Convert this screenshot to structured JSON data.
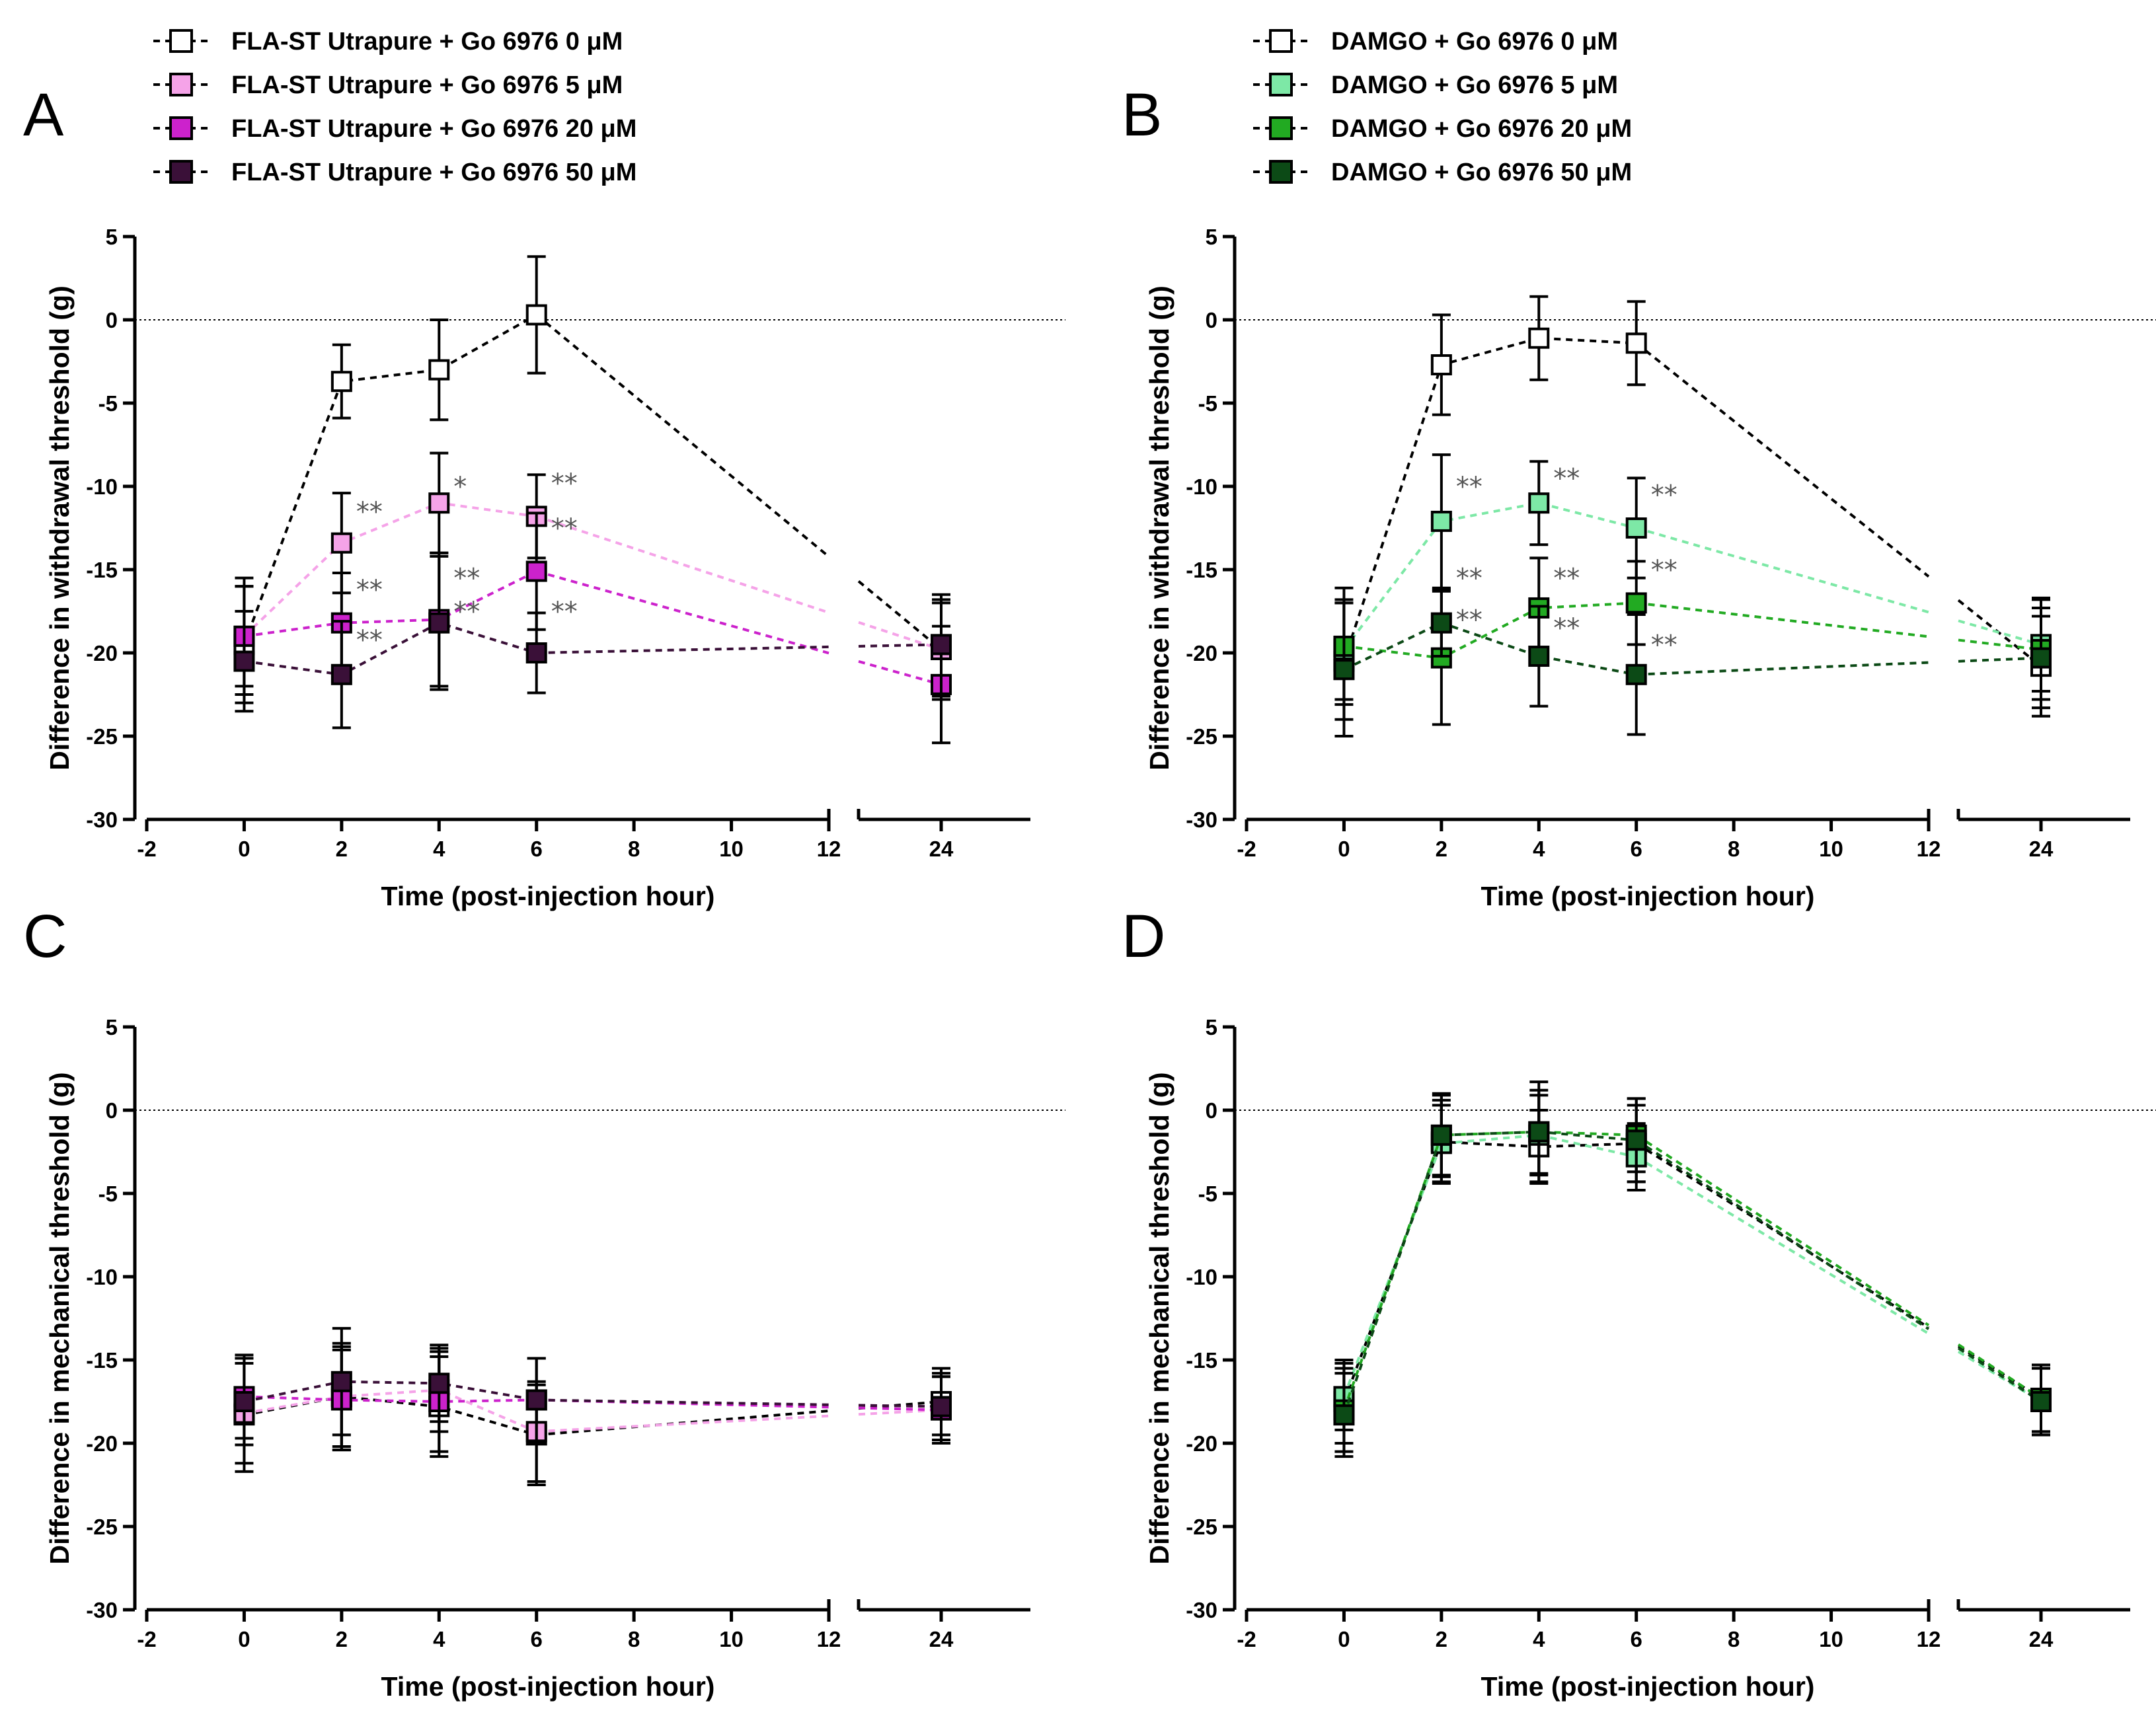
{
  "legends": {
    "left": [
      {
        "text": "FLA-ST Utrapure + Go 6976 0 μM",
        "color": "#ffffff"
      },
      {
        "text": "FLA-ST Utrapure + Go 6976 5 μM",
        "color": "#f5a3e8"
      },
      {
        "text": "FLA-ST Utrapure + Go 6976 20 μM",
        "color": "#cc22cc"
      },
      {
        "text": "FLA-ST Utrapure + Go 6976 50 μM",
        "color": "#3a1038"
      }
    ],
    "right": [
      {
        "text": "DAMGO + Go 6976 0 μM",
        "color": "#ffffff"
      },
      {
        "text": "DAMGO + Go 6976 5 μM",
        "color": "#7de8a6"
      },
      {
        "text": "DAMGO + Go 6976 20 μM",
        "color": "#22aa22"
      },
      {
        "text": "DAMGO + Go 6976 50 μM",
        "color": "#0c4a16"
      }
    ]
  },
  "chart_data": [
    {
      "type": "line",
      "panel": "A",
      "xlabel": "Time (post-injection hour)",
      "ylabel": "Difference in withdrawal threshold (g)",
      "ylim": [
        -30,
        5
      ],
      "yticks": [
        "5",
        "0",
        "-5",
        "-10",
        "-15",
        "-20",
        "-25",
        "-30"
      ],
      "xticks": [
        "-2",
        "0",
        "2",
        "4",
        "6",
        "8",
        "10",
        "12",
        "24"
      ],
      "x": [
        0,
        2,
        4,
        6,
        24
      ],
      "series": [
        {
          "name": "FLA-ST Utrapure + Go 6976 0 μM",
          "color": "#ffffff",
          "values": [
            -19.5,
            -3.7,
            -3.0,
            0.3,
            -19.8
          ],
          "err": [
            3.5,
            2.2,
            3.0,
            3.5,
            3.0
          ]
        },
        {
          "name": "FLA-ST Utrapure + Go 6976 5 μM",
          "color": "#f5a3e8",
          "values": [
            -19.0,
            -13.4,
            -11.0,
            -11.8,
            -19.8
          ],
          "err": [
            3.0,
            3.0,
            3.0,
            2.5,
            2.8
          ]
        },
        {
          "name": "FLA-ST Utrapure + Go 6976 20 μM",
          "color": "#cc22cc",
          "values": [
            -19.0,
            -18.2,
            -18.0,
            -15.1,
            -21.9
          ],
          "err": [
            3.5,
            3.0,
            4.0,
            3.5,
            3.5
          ]
        },
        {
          "name": "FLA-ST Utrapure + Go 6976 50 μM",
          "color": "#3a1038",
          "values": [
            -20.5,
            -21.3,
            -18.2,
            -20.0,
            -19.5
          ],
          "err": [
            3.0,
            3.2,
            4.0,
            2.4,
            3.0
          ]
        }
      ],
      "annotations": [
        {
          "text": "**",
          "x": 2,
          "y": -11.5
        },
        {
          "text": "*",
          "x": 4,
          "y": -10.0
        },
        {
          "text": "**",
          "x": 6,
          "y": -9.8
        },
        {
          "text": "**",
          "x": 6,
          "y": -12.5
        },
        {
          "text": "**",
          "x": 2,
          "y": -16.2
        },
        {
          "text": "**",
          "x": 2,
          "y": -19.2
        },
        {
          "text": "**",
          "x": 4,
          "y": -15.5
        },
        {
          "text": "**",
          "x": 4,
          "y": -17.5
        },
        {
          "text": "**",
          "x": 6,
          "y": -17.5
        }
      ]
    },
    {
      "type": "line",
      "panel": "B",
      "xlabel": "Time (post-injection hour)",
      "ylabel": "Difference in withdrawal threshold (g)",
      "ylim": [
        -30,
        5
      ],
      "yticks": [
        "5",
        "0",
        "-5",
        "-10",
        "-15",
        "-20",
        "-25",
        "-30"
      ],
      "xticks": [
        "-2",
        "0",
        "2",
        "4",
        "6",
        "8",
        "10",
        "12",
        "24"
      ],
      "x": [
        0,
        2,
        4,
        6,
        24
      ],
      "series": [
        {
          "name": "DAMGO + Go 6976 0 μM",
          "color": "#ffffff",
          "values": [
            -20.5,
            -2.7,
            -1.1,
            -1.4,
            -20.8
          ],
          "err": [
            3.5,
            3.0,
            2.5,
            2.5,
            3.0
          ]
        },
        {
          "name": "DAMGO + Go 6976 5 μM",
          "color": "#7de8a6",
          "values": [
            -19.8,
            -12.1,
            -11.0,
            -12.5,
            -19.5
          ],
          "err": [
            3.0,
            4.0,
            2.5,
            3.0,
            2.8
          ]
        },
        {
          "name": "DAMGO + Go 6976 20 μM",
          "color": "#22aa22",
          "values": [
            -19.6,
            -20.3,
            -17.3,
            -17.0,
            -19.8
          ],
          "err": [
            3.5,
            4.0,
            3.0,
            2.5,
            3.0
          ]
        },
        {
          "name": "DAMGO + Go 6976 50 μM",
          "color": "#0c4a16",
          "values": [
            -21.0,
            -18.2,
            -20.2,
            -21.3,
            -20.3
          ],
          "err": [
            4.0,
            2.0,
            3.0,
            3.6,
            3.0
          ]
        }
      ],
      "annotations": [
        {
          "text": "**",
          "x": 2,
          "y": -10.0
        },
        {
          "text": "**",
          "x": 4,
          "y": -9.5
        },
        {
          "text": "**",
          "x": 6,
          "y": -10.5
        },
        {
          "text": "**",
          "x": 6,
          "y": -15.0
        },
        {
          "text": "**",
          "x": 2,
          "y": -15.5
        },
        {
          "text": "**",
          "x": 2,
          "y": -18.0
        },
        {
          "text": "**",
          "x": 4,
          "y": -15.5
        },
        {
          "text": "**",
          "x": 4,
          "y": -18.5
        },
        {
          "text": "**",
          "x": 6,
          "y": -19.5
        }
      ]
    },
    {
      "type": "line",
      "panel": "C",
      "xlabel": "Time (post-injection hour)",
      "ylabel": "Difference in mechanical threshold (g)",
      "ylim": [
        -30,
        5
      ],
      "yticks": [
        "5",
        "0",
        "-5",
        "-10",
        "-15",
        "-20",
        "-25",
        "-30"
      ],
      "xticks": [
        "-2",
        "0",
        "2",
        "4",
        "6",
        "8",
        "10",
        "12",
        "24"
      ],
      "x": [
        0,
        2,
        4,
        6,
        24
      ],
      "series": [
        {
          "name": "FLA-ST Utrapure + Go 6976 0 μM",
          "color": "#ffffff",
          "values": [
            -18.3,
            -17.2,
            -17.8,
            -19.5,
            -17.5
          ],
          "err": [
            3.4,
            3.2,
            3.0,
            3.0,
            2.0
          ]
        },
        {
          "name": "FLA-ST Utrapure + Go 6976 5 μM",
          "color": "#f5a3e8",
          "values": [
            -18.2,
            -17.2,
            -16.8,
            -19.3,
            -18.0
          ],
          "err": [
            3.0,
            3.0,
            2.5,
            3.0,
            2.0
          ]
        },
        {
          "name": "FLA-ST Utrapure + Go 6976 20 μM",
          "color": "#cc22cc",
          "values": [
            -17.2,
            -17.4,
            -17.5,
            -17.4,
            -18.0
          ],
          "err": [
            2.5,
            3.0,
            3.0,
            2.5,
            2.0
          ]
        },
        {
          "name": "FLA-ST Utrapure + Go 6976 50 μM",
          "color": "#3a1038",
          "values": [
            -17.5,
            -16.3,
            -16.4,
            -17.4,
            -17.8
          ],
          "err": [
            2.6,
            3.2,
            2.3,
            2.5,
            2.0
          ]
        }
      ]
    },
    {
      "type": "line",
      "panel": "D",
      "xlabel": "Time (post-injection hour)",
      "ylabel": "Difference in mechanical threshold (g)",
      "ylim": [
        -30,
        5
      ],
      "yticks": [
        "5",
        "0",
        "-5",
        "-10",
        "-15",
        "-20",
        "-25",
        "-30"
      ],
      "xticks": [
        "-2",
        "0",
        "2",
        "4",
        "6",
        "8",
        "10",
        "12",
        "24"
      ],
      "x": [
        0,
        2,
        4,
        6,
        24
      ],
      "series": [
        {
          "name": "DAMGO + Go 6976 0 μM",
          "color": "#ffffff",
          "values": [
            -17.5,
            -1.9,
            -2.2,
            -2.0,
            -17.3
          ],
          "err": [
            2.5,
            2.5,
            2.2,
            2.3,
            2.0
          ]
        },
        {
          "name": "DAMGO + Go 6976 5 μM",
          "color": "#7de8a6",
          "values": [
            -17.2,
            -2.0,
            -1.5,
            -2.8,
            -17.5
          ],
          "err": [
            2.0,
            2.3,
            2.4,
            2.0,
            2.0
          ]
        },
        {
          "name": "DAMGO + Go 6976 20 μM",
          "color": "#22aa22",
          "values": [
            -18.0,
            -1.5,
            -1.3,
            -1.5,
            -17.3
          ],
          "err": [
            2.5,
            2.4,
            2.5,
            2.2,
            2.0
          ]
        },
        {
          "name": "DAMGO + Go 6976 50 μM",
          "color": "#0c4a16",
          "values": [
            -18.3,
            -1.5,
            -1.3,
            -1.8,
            -17.5
          ],
          "err": [
            2.5,
            2.5,
            3.0,
            2.5,
            2.0
          ]
        }
      ]
    }
  ]
}
